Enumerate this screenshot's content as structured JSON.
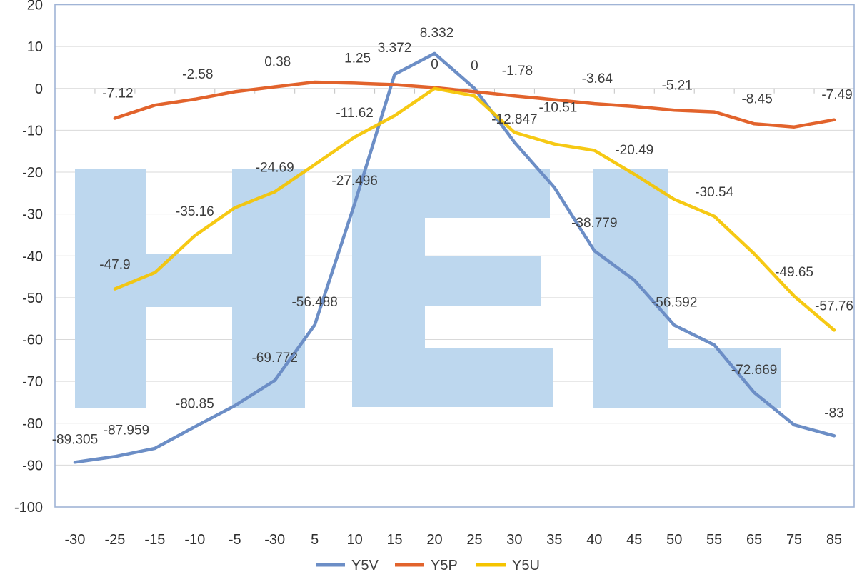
{
  "chart_data": {
    "type": "line",
    "title": "",
    "xlabel": "",
    "ylabel": "",
    "categories": [
      "-30",
      "-25",
      "-15",
      "-10",
      "-5",
      "-30",
      "5",
      "10",
      "15",
      "20",
      "25",
      "30",
      "35",
      "40",
      "45",
      "50",
      "55",
      "65",
      "75",
      "85"
    ],
    "series": [
      {
        "name": "Y5V",
        "color": "#6C8EC6",
        "opacity": 1,
        "values": [
          -89.305,
          -87.959,
          -86.0,
          -80.85,
          -75.8,
          -69.772,
          -56.488,
          -27.496,
          3.372,
          8.332,
          0,
          -12.847,
          -23.7,
          -38.779,
          -45.8,
          -56.592,
          -61.3,
          -72.669,
          -80.4,
          -83
        ],
        "labels": {
          "0": "-89.305",
          "1": "-87.959",
          "3": "-80.85",
          "5": "-69.772",
          "6": "-56.488",
          "7": "-27.496",
          "8": "3.372",
          "9": "8.332",
          "10": "0",
          "11": "-12.847",
          "13": "-38.779",
          "15": "-56.592",
          "17": "-72.669",
          "19": "-83"
        },
        "label_default_offset": [
          0,
          -33
        ],
        "label_offsets": {
          "1": [
            16,
            -38
          ],
          "8": [
            0,
            -38
          ],
          "9": [
            3,
            -30
          ],
          "13": [
            0,
            -40
          ]
        }
      },
      {
        "name": "Y5P",
        "color": "#E2632C",
        "opacity": 1,
        "values": [
          null,
          -7.12,
          -4.0,
          -2.58,
          -0.8,
          0.38,
          1.5,
          1.25,
          0.9,
          0.2,
          -0.8,
          -1.78,
          -2.7,
          -3.64,
          -4.3,
          -5.21,
          -5.6,
          -8.45,
          -9.2,
          -7.49
        ],
        "labels": {
          "1": "-7.12",
          "3": "-2.58",
          "5": "0.38",
          "7": "1.25",
          "11": "-1.78",
          "13": "-3.64",
          "15": "-5.21",
          "17": "-8.45",
          "19": "-7.49"
        },
        "label_default_offset": [
          4,
          -36
        ],
        "label_offsets": {}
      },
      {
        "name": "Y5U",
        "color": "#F5C400",
        "opacity": 0.92,
        "values": [
          null,
          -47.9,
          -44.0,
          -35.16,
          -28.5,
          -24.69,
          -18.2,
          -11.62,
          -6.5,
          0,
          -1.8,
          -10.51,
          -13.3,
          -14.8,
          -20.49,
          -26.5,
          -30.54,
          -39.5,
          -49.65,
          -57.76
        ],
        "labels": {
          "1": "-47.9",
          "3": "-35.16",
          "5": "-24.69",
          "7": "-11.62",
          "9": "0",
          "11": "-10.51",
          "14": "-20.49",
          "16": "-30.54",
          "18": "-49.65",
          "19": "-57.76"
        },
        "label_default_offset": [
          0,
          -35
        ],
        "label_offsets": {
          "11": [
            61,
            -36
          ]
        }
      }
    ],
    "y_axis": {
      "min": -100,
      "max": 20,
      "step": 10,
      "tick_labels": [
        "20",
        "10",
        "0",
        "-10",
        "-20",
        "-30",
        "-40",
        "-50",
        "-60",
        "-70",
        "-80",
        "-90",
        "-100"
      ]
    },
    "x_axis": {
      "tick_labels": [
        "-30",
        "-25",
        "-15",
        "-10",
        "-5",
        "-30",
        "5",
        "10",
        "15",
        "20",
        "25",
        "30",
        "35",
        "40",
        "45",
        "50",
        "55",
        "65",
        "75",
        "85"
      ]
    },
    "grid": true,
    "legend_position": "bottom",
    "watermark": {
      "text": "HEL",
      "color": "#BDD7EE"
    }
  },
  "legend": {
    "items": [
      {
        "label": "Y5V",
        "color": "#6C8EC6"
      },
      {
        "label": "Y5P",
        "color": "#E2632C"
      },
      {
        "label": "Y5U",
        "color": "#F5C400"
      }
    ]
  },
  "style_colors": {
    "plot_border": "#A0B4D6",
    "gridline": "#D9D9D9",
    "axis_tick": "#C2C2C2",
    "axis_text": "#2E2E2E",
    "label_text": "#3D3D3D"
  }
}
